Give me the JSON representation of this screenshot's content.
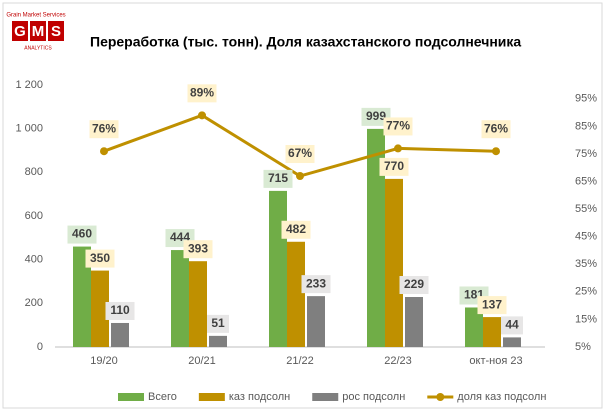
{
  "logo": {
    "top": "Grain Market Services",
    "letters": [
      "G",
      "M",
      "S"
    ],
    "bottom": "ANALYTICS"
  },
  "chart_data": {
    "type": "bar",
    "title": "Переработка (тыс. тонн). Доля казахстанского подсолнечника",
    "categories": [
      "19/20",
      "20/21",
      "21/22",
      "22/23",
      "окт-ноя 23"
    ],
    "series": [
      {
        "name": "Всего",
        "color": "#70ad47",
        "label_bg": "#d9ead3",
        "values": [
          460,
          444,
          715,
          999,
          181
        ]
      },
      {
        "name": "каз подсолн",
        "color": "#bf9000",
        "label_bg": "#fff2cc",
        "values": [
          350,
          393,
          482,
          770,
          137
        ]
      },
      {
        "name": "рос подсолн",
        "color": "#7f7f7f",
        "label_bg": "#e7e6e6",
        "values": [
          110,
          51,
          233,
          229,
          44
        ]
      },
      {
        "name": "доля каз подсолн",
        "type": "line",
        "axis": "y2",
        "color": "#bf9000",
        "label_bg": "#fff2cc",
        "values": [
          76,
          89,
          67,
          77,
          76
        ],
        "value_labels": [
          "76%",
          "89%",
          "67%",
          "77%",
          "76%"
        ]
      }
    ],
    "ylim": [
      0,
      1200
    ],
    "yticks": [
      0,
      200,
      400,
      600,
      800,
      {
        "value": 1000,
        "label": "1 000"
      },
      {
        "value": 1200,
        "label": "1 200"
      }
    ],
    "y2lim": [
      5,
      100
    ],
    "y2ticks": [
      {
        "value": 5,
        "label": "5%"
      },
      {
        "value": 15,
        "label": "15%"
      },
      {
        "value": 25,
        "label": "25%"
      },
      {
        "value": 35,
        "label": "35%"
      },
      {
        "value": 45,
        "label": "45%"
      },
      {
        "value": 55,
        "label": "55%"
      },
      {
        "value": 65,
        "label": "65%"
      },
      {
        "value": 75,
        "label": "75%"
      },
      {
        "value": 85,
        "label": "85%"
      },
      {
        "value": 95,
        "label": "95%"
      }
    ],
    "grid": false,
    "legend": "bottom"
  }
}
